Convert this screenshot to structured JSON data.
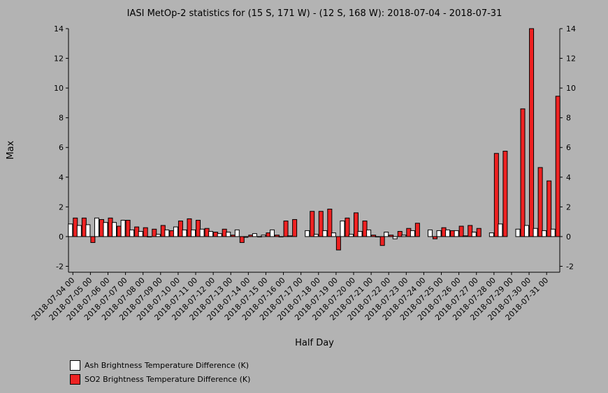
{
  "chart_data": {
    "type": "bar",
    "title": "IASI MetOp-2 statistics for (15 S, 171 W) - (12 S, 168 W): 2018-07-04 - 2018-07-31",
    "xlabel": "Half Day",
    "ylabel": "Max",
    "ylim": [
      -2.4,
      14
    ],
    "yticks": [
      -2,
      0,
      2,
      4,
      6,
      8,
      10,
      12,
      14
    ],
    "grid": false,
    "legend_position": "bottom-left",
    "categories": [
      "2018-07-04 00",
      "2018-07-04 12",
      "2018-07-05 00",
      "2018-07-05 12",
      "2018-07-06 00",
      "2018-07-06 12",
      "2018-07-07 00",
      "2018-07-07 12",
      "2018-07-08 00",
      "2018-07-08 12",
      "2018-07-09 00",
      "2018-07-09 12",
      "2018-07-10 00",
      "2018-07-10 12",
      "2018-07-11 00",
      "2018-07-11 12",
      "2018-07-12 00",
      "2018-07-12 12",
      "2018-07-13 00",
      "2018-07-13 12",
      "2018-07-14 00",
      "2018-07-14 12",
      "2018-07-15 00",
      "2018-07-15 12",
      "2018-07-16 00",
      "2018-07-16 12",
      "2018-07-17 00",
      "2018-07-17 12",
      "2018-07-18 00",
      "2018-07-18 12",
      "2018-07-19 00",
      "2018-07-19 12",
      "2018-07-20 00",
      "2018-07-20 12",
      "2018-07-21 00",
      "2018-07-21 12",
      "2018-07-22 00",
      "2018-07-22 12",
      "2018-07-23 00",
      "2018-07-23 12",
      "2018-07-24 00",
      "2018-07-24 12",
      "2018-07-25 00",
      "2018-07-25 12",
      "2018-07-26 00",
      "2018-07-26 12",
      "2018-07-27 00",
      "2018-07-27 12",
      "2018-07-28 00",
      "2018-07-28 12",
      "2018-07-29 00",
      "2018-07-29 12",
      "2018-07-30 00",
      "2018-07-30 12",
      "2018-07-31 00",
      "2018-07-31 12"
    ],
    "tick_labels": [
      "2018-07-04 00",
      "2018-07-05 00",
      "2018-07-06 00",
      "2018-07-07 00",
      "2018-07-08 00",
      "2018-07-09 00",
      "2018-07-10 00",
      "2018-07-11 00",
      "2018-07-12 00",
      "2018-07-13 00",
      "2018-07-14 00",
      "2018-07-15 00",
      "2018-07-16 00",
      "2018-07-17 00",
      "2018-07-18 00",
      "2018-07-19 00",
      "2018-07-20 00",
      "2018-07-21 00",
      "2018-07-22 00",
      "2018-07-23 00",
      "2018-07-24 00",
      "2018-07-25 00",
      "2018-07-26 00",
      "2018-07-27 00",
      "2018-07-28 00",
      "2018-07-29 00",
      "2018-07-30 00",
      "2018-07-31 00"
    ],
    "series": [
      {
        "name": "Ash Brightness Temperature Difference (K)",
        "color": "#ffffff",
        "values": [
          0.85,
          0.75,
          0.8,
          1.25,
          0.95,
          0.95,
          1.1,
          0.45,
          0.35,
          0.0,
          0.15,
          0.45,
          0.65,
          0.45,
          0.45,
          0.5,
          0.35,
          0.2,
          0.3,
          0.45,
          -0.05,
          0.2,
          0.1,
          0.45,
          0.0,
          0.05,
          null,
          0.4,
          0.15,
          0.4,
          0.25,
          1.05,
          0.15,
          0.35,
          0.45,
          0.0,
          0.3,
          -0.15,
          0.1,
          0.4,
          null,
          0.45,
          0.4,
          0.45,
          0.4,
          0.05,
          0.3,
          null,
          0.25,
          0.85,
          null,
          0.5,
          0.75,
          0.55,
          0.4,
          0.5
        ]
      },
      {
        "name": "SO2 Brightness Temperature Difference (K)",
        "color": "#ee2222",
        "values": [
          1.25,
          1.25,
          -0.4,
          1.15,
          1.25,
          0.7,
          1.1,
          0.65,
          0.6,
          0.5,
          0.75,
          0.4,
          1.05,
          1.2,
          1.1,
          0.55,
          0.3,
          0.5,
          0.1,
          -0.4,
          0.1,
          0.0,
          0.25,
          0.1,
          1.05,
          1.15,
          null,
          1.7,
          1.7,
          1.85,
          -0.9,
          1.25,
          1.6,
          1.05,
          0.1,
          -0.6,
          0.1,
          0.35,
          0.55,
          0.9,
          null,
          -0.15,
          0.6,
          0.4,
          0.7,
          0.75,
          0.55,
          null,
          5.6,
          5.75,
          null,
          8.6,
          14.0,
          4.65,
          3.75,
          9.45
        ]
      }
    ]
  }
}
